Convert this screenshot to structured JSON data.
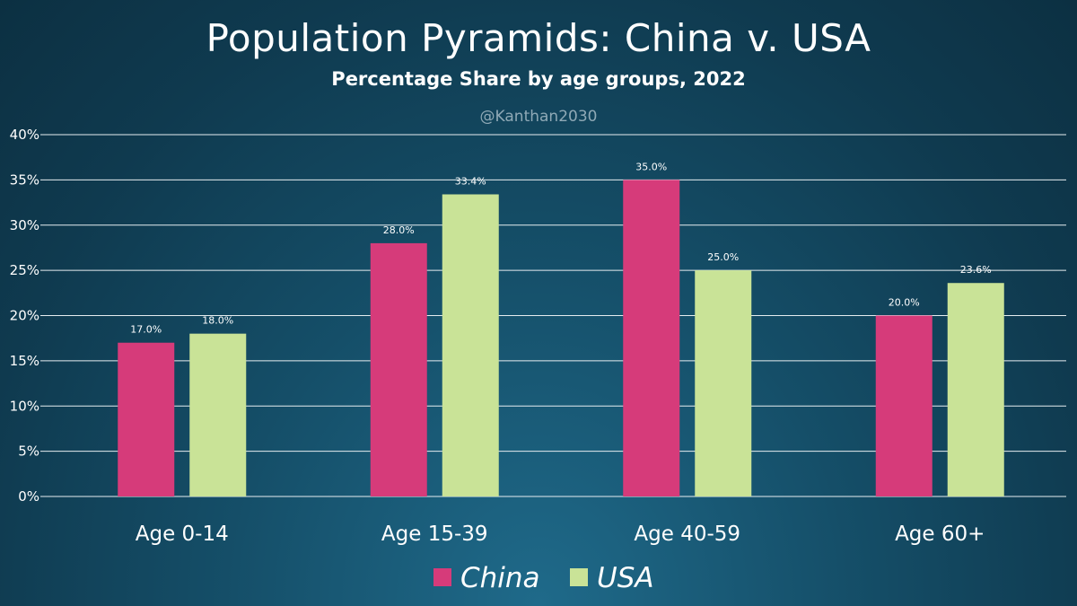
{
  "watermark": "@Kanthan2030",
  "chart_data": {
    "type": "bar",
    "title": "Population Pyramids: China v. USA",
    "subtitle": "Percentage Share by age groups, 2022",
    "categories": [
      "Age 0-14",
      "Age 15-39",
      "Age 40-59",
      "Age 60+"
    ],
    "series": [
      {
        "name": "China",
        "color": "#d63b7a",
        "values": [
          17.0,
          28.0,
          35.0,
          20.0
        ],
        "labels": [
          "17.0%",
          "28.0%",
          "35.0%",
          "20.0%"
        ]
      },
      {
        "name": "USA",
        "color": "#c9e397",
        "values": [
          18.0,
          33.4,
          25.0,
          23.6
        ],
        "labels": [
          "18.0%",
          "33.4%",
          "25.0%",
          "23.6%"
        ]
      }
    ],
    "ylim": [
      0,
      40
    ],
    "yticks": [
      0,
      5,
      10,
      15,
      20,
      25,
      30,
      35,
      40
    ],
    "ytick_labels": [
      "0%",
      "5%",
      "10%",
      "15%",
      "20%",
      "25%",
      "30%",
      "35%",
      "40%"
    ],
    "grid": true,
    "legend_position": "bottom-center",
    "xlabel": "",
    "ylabel": ""
  }
}
